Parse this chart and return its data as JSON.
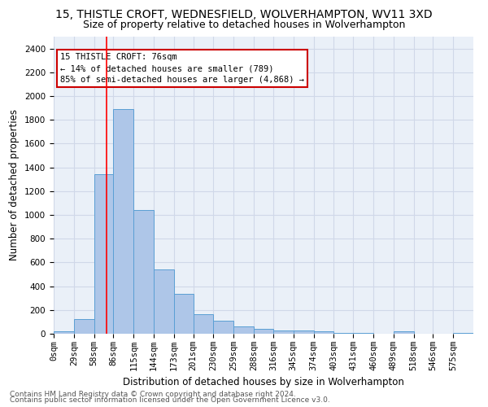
{
  "title1": "15, THISTLE CROFT, WEDNESFIELD, WOLVERHAMPTON, WV11 3XD",
  "title2": "Size of property relative to detached houses in Wolverhampton",
  "xlabel": "Distribution of detached houses by size in Wolverhampton",
  "ylabel": "Number of detached properties",
  "footer1": "Contains HM Land Registry data © Crown copyright and database right 2024.",
  "footer2": "Contains public sector information licensed under the Open Government Licence v3.0.",
  "annotation_title": "15 THISTLE CROFT: 76sqm",
  "annotation_line1": "← 14% of detached houses are smaller (789)",
  "annotation_line2": "85% of semi-detached houses are larger (4,868) →",
  "property_size": 76,
  "bar_values": [
    20,
    125,
    1340,
    1890,
    1040,
    540,
    335,
    165,
    110,
    60,
    40,
    30,
    25,
    20,
    10,
    5,
    0,
    20,
    0,
    0,
    10
  ],
  "bin_edges": [
    0,
    29,
    58,
    86,
    115,
    144,
    173,
    201,
    230,
    259,
    288,
    316,
    345,
    374,
    403,
    431,
    460,
    489,
    518,
    546,
    575,
    604
  ],
  "tick_labels": [
    "0sqm",
    "29sqm",
    "58sqm",
    "86sqm",
    "115sqm",
    "144sqm",
    "173sqm",
    "201sqm",
    "230sqm",
    "259sqm",
    "288sqm",
    "316sqm",
    "345sqm",
    "374sqm",
    "403sqm",
    "431sqm",
    "460sqm",
    "489sqm",
    "518sqm",
    "546sqm",
    "575sqm"
  ],
  "ylim": [
    0,
    2500
  ],
  "yticks": [
    0,
    200,
    400,
    600,
    800,
    1000,
    1200,
    1400,
    1600,
    1800,
    2000,
    2200,
    2400
  ],
  "bar_color": "#aec6e8",
  "bar_edge_color": "#5a9fd4",
  "grid_color": "#d0d8e8",
  "background_color": "#eaf0f8",
  "red_line_x": 76,
  "annotation_box_color": "#cc0000",
  "title1_fontsize": 10,
  "title2_fontsize": 9,
  "axis_label_fontsize": 8.5,
  "tick_fontsize": 7.5,
  "footer_fontsize": 6.5
}
